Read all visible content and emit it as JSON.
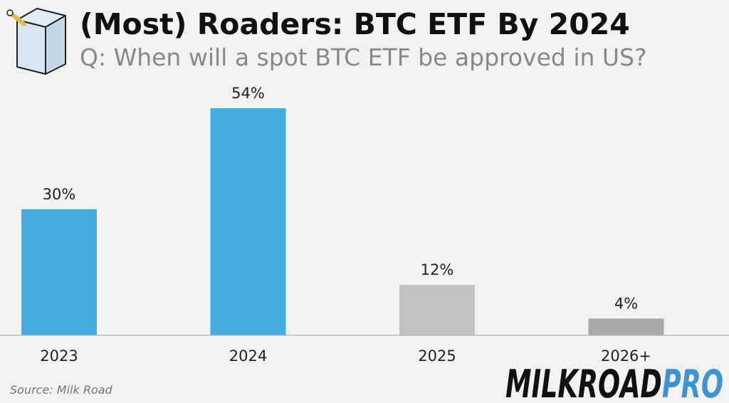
{
  "header": {
    "title": "(Most) Roaders: BTC ETF By 2024",
    "subtitle": "Q: When will a spot BTC ETF be approved in US?"
  },
  "footer": {
    "source": "Source: Milk Road",
    "brand": "MILKROADPRO"
  },
  "colors": {
    "highlight_bar": "#45ade0",
    "muted_bar_light": "#c2c2c2",
    "muted_bar_dark": "#a8a8a8",
    "axis": "#bbbbbb",
    "label_text": "#222222",
    "brand_black": "#111111",
    "brand_blue": "#3e94d1"
  },
  "chart_data": {
    "type": "bar",
    "title": "(Most) Roaders: BTC ETF By 2024",
    "subtitle": "Q: When will a spot BTC ETF be approved in US?",
    "categories": [
      "2023",
      "2024",
      "2025",
      "2026+"
    ],
    "values": [
      30,
      54,
      12,
      4
    ],
    "data_labels": [
      "30%",
      "54%",
      "12%",
      "4%"
    ],
    "bar_colors": [
      "#45ade0",
      "#45ade0",
      "#c2c2c2",
      "#a8a8a8"
    ],
    "unit": "%",
    "xlabel": "",
    "ylabel": "",
    "ylim": [
      0,
      54
    ],
    "grid": false,
    "legend": "none"
  }
}
